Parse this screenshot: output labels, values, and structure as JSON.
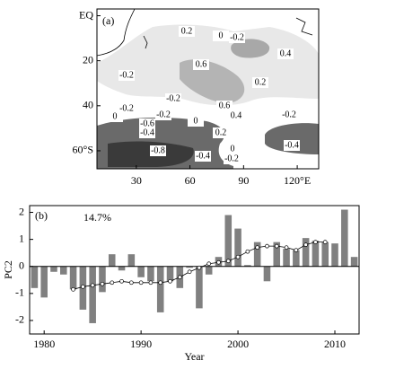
{
  "chart_data": [
    {
      "type": "contour",
      "panel_label": "(a)",
      "xlim": [
        8,
        132
      ],
      "xticks": [
        30,
        60,
        90,
        {
          "value": 120,
          "label": "120°E"
        }
      ],
      "ylim": [
        -3,
        68
      ],
      "yticks": [
        {
          "value": 0,
          "label": "EQ"
        },
        20,
        40,
        {
          "value": 60,
          "label": "60°S"
        }
      ],
      "annotations": [
        "0.2",
        "0",
        "-0.2",
        "0.4",
        "0.6",
        "-0.2",
        "0.2",
        "-0.2",
        "0.6",
        "0.4",
        "-0.2",
        "-0.2",
        "0",
        "-0.2",
        "-0.6",
        "0.2",
        "-0.4",
        "-0.8",
        "-0.4",
        "-0.2",
        "0",
        "-0.4",
        "0"
      ]
    },
    {
      "type": "bar",
      "panel_label": "(b)",
      "annotation": "14.7%",
      "ylabel": "PC2",
      "xlabel": "Year",
      "x": [
        1979,
        1980,
        1981,
        1982,
        1983,
        1984,
        1985,
        1986,
        1987,
        1988,
        1989,
        1990,
        1991,
        1992,
        1993,
        1994,
        1995,
        1996,
        1997,
        1998,
        1999,
        2000,
        2001,
        2002,
        2003,
        2004,
        2005,
        2006,
        2007,
        2008,
        2009,
        2010,
        2011,
        2012
      ],
      "series": [
        {
          "color": "#808080",
          "values": [
            -0.8,
            -1.15,
            -0.2,
            -0.3,
            -0.85,
            -1.6,
            -2.1,
            -0.95,
            0.45,
            -0.15,
            0.45,
            -0.4,
            -0.55,
            -1.7,
            -0.55,
            -0.8,
            -0.05,
            -1.55,
            -0.3,
            0.35,
            1.9,
            1.4,
            0.05,
            0.9,
            -0.55,
            0.9,
            0.65,
            0.6,
            1.05,
            0.95,
            0.9,
            0.85,
            2.1,
            0.35
          ]
        },
        {
          "type": "line",
          "color": "#000000",
          "values": [
            null,
            null,
            null,
            null,
            -0.85,
            -0.75,
            -0.7,
            -0.65,
            -0.6,
            -0.55,
            -0.6,
            -0.6,
            -0.6,
            -0.6,
            -0.55,
            -0.4,
            -0.2,
            -0.05,
            0.1,
            0.15,
            0.2,
            0.35,
            0.55,
            0.7,
            0.75,
            0.75,
            0.7,
            0.6,
            0.8,
            0.9,
            0.9,
            null,
            null,
            null
          ]
        }
      ],
      "xlim": [
        1978.5,
        2012.5
      ],
      "xticks": [
        1980,
        1990,
        2000,
        2010
      ],
      "ylim": [
        -2.5,
        2.25
      ],
      "yticks": [
        -2,
        -1,
        0,
        1,
        2
      ]
    }
  ]
}
